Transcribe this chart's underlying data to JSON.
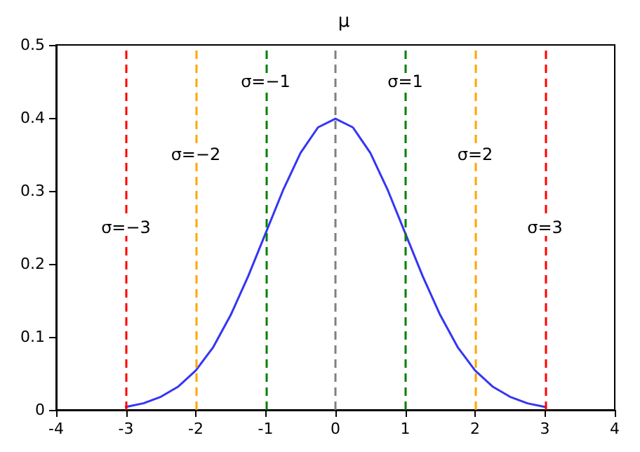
{
  "chart_data": {
    "type": "line",
    "title": "μ",
    "series": [
      {
        "color": "#3535f5",
        "x": [
          -3,
          -2.75,
          -2.5,
          -2.25,
          -2,
          -1.75,
          -1.5,
          -1.25,
          -1,
          -0.75,
          -0.5,
          -0.25,
          0,
          0.25,
          0.5,
          0.75,
          1,
          1.25,
          1.5,
          1.75,
          2,
          2.25,
          2.5,
          2.75,
          3
        ],
        "values": [
          0.004,
          0.009,
          0.018,
          0.032,
          0.054,
          0.086,
          0.13,
          0.183,
          0.242,
          0.301,
          0.352,
          0.387,
          0.399,
          0.387,
          0.352,
          0.301,
          0.242,
          0.183,
          0.13,
          0.086,
          0.054,
          0.032,
          0.018,
          0.009,
          0.004
        ]
      }
    ],
    "xlim": [
      -4,
      4
    ],
    "xticks": [
      -4,
      -3,
      -2,
      -1,
      0,
      1,
      2,
      3,
      4
    ],
    "ylim": [
      0,
      0.5
    ],
    "yticks": [
      0,
      0.1,
      0.2,
      0.3,
      0.4,
      0.5
    ],
    "grid": false,
    "marker": "none",
    "line_style": "solid",
    "ref_lines": [
      {
        "axis": "x",
        "value": -3,
        "color": "#ff0000",
        "line_style": "dashed"
      },
      {
        "axis": "x",
        "value": -2,
        "color": "#ffa500",
        "line_style": "dashed"
      },
      {
        "axis": "x",
        "value": -1,
        "color": "#008000",
        "line_style": "dashed"
      },
      {
        "axis": "x",
        "value": 0,
        "color": "#808080",
        "line_style": "dashed"
      },
      {
        "axis": "x",
        "value": 1,
        "color": "#008000",
        "line_style": "dashed"
      },
      {
        "axis": "x",
        "value": 2,
        "color": "#ffa500",
        "line_style": "dashed"
      },
      {
        "axis": "x",
        "value": 3,
        "color": "#ff0000",
        "line_style": "dashed"
      }
    ],
    "annotations": [
      {
        "text": "σ=−3",
        "x": -3,
        "y": 0.25
      },
      {
        "text": "σ=−2",
        "x": -2,
        "y": 0.35
      },
      {
        "text": "σ=−1",
        "x": -1,
        "y": 0.45
      },
      {
        "text": "σ=1",
        "x": 1,
        "y": 0.45
      },
      {
        "text": "σ=2",
        "x": 2,
        "y": 0.35
      },
      {
        "text": "σ=3",
        "x": 3,
        "y": 0.25
      }
    ]
  }
}
